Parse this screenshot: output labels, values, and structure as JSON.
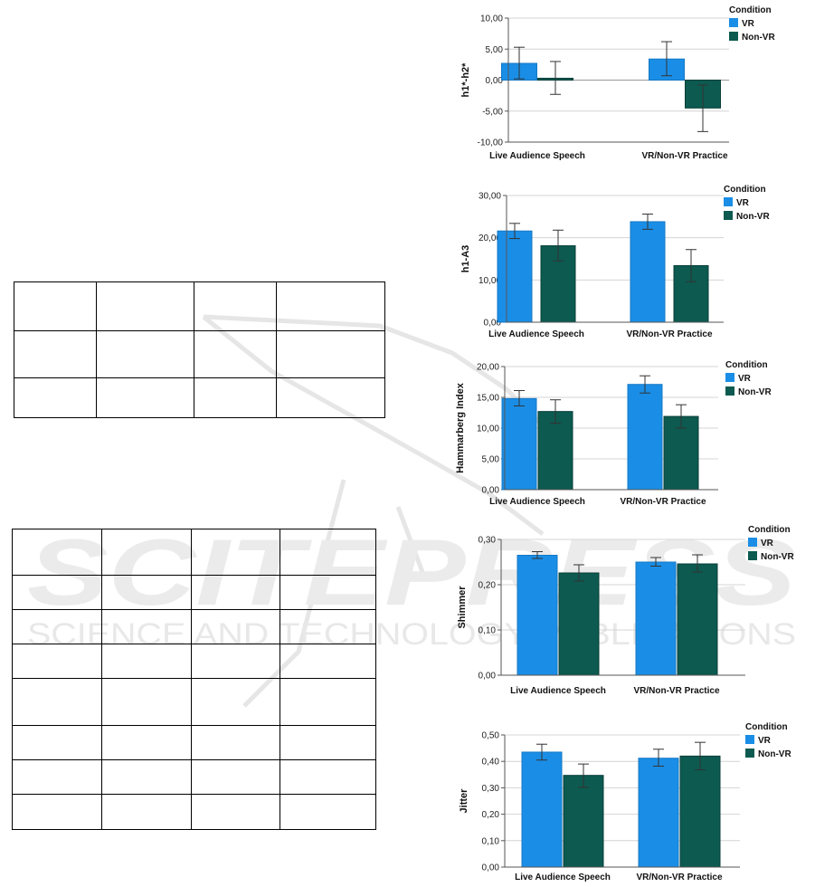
{
  "colors": {
    "vr": "#1a8ee6",
    "non_vr": "#0c5a50",
    "grid": "#d4d4d4",
    "axis": "#555555",
    "watermark": "#e3e3e3"
  },
  "watermark": {
    "main": "SCITEPRESS",
    "sub": "SCIENCE AND TECHNOLOGY PUBLICATIONS"
  },
  "tables": [
    {
      "rows": 3,
      "cols": 4
    },
    {
      "rows": 8,
      "cols": 4
    }
  ],
  "chart_data": [
    {
      "type": "bar",
      "ylabel": "h1*-h2*",
      "categories": [
        "Live Audience Speech",
        "VR/Non-VR Practice"
      ],
      "ylim": [
        -10,
        10
      ],
      "yticks": [
        "-10,00",
        "-5,00",
        "0,00",
        "5,00",
        "10,00"
      ],
      "series": [
        {
          "name": "VR",
          "values": [
            2.7,
            3.4
          ],
          "err_low": [
            0.2,
            0.7
          ],
          "err_high": [
            5.3,
            6.2
          ]
        },
        {
          "name": "Non-VR",
          "values": [
            0.3,
            -4.5
          ],
          "err_low": [
            -2.3,
            -8.3
          ],
          "err_high": [
            3.0,
            -0.8
          ]
        }
      ],
      "legend_title": "Condition",
      "legend_position": "top-right",
      "grid": true
    },
    {
      "type": "bar",
      "ylabel": "h1-A3",
      "categories": [
        "Live Audience Speech",
        "VR/Non-VR Practice"
      ],
      "ylim": [
        0,
        30
      ],
      "yticks": [
        "0,00",
        "10,00",
        "20,00",
        "30,00"
      ],
      "series": [
        {
          "name": "VR",
          "values": [
            21.6,
            23.8
          ],
          "err_low": [
            19.8,
            22.0
          ],
          "err_high": [
            23.4,
            25.6
          ]
        },
        {
          "name": "Non-VR",
          "values": [
            18.1,
            13.4
          ],
          "err_low": [
            14.5,
            9.6
          ],
          "err_high": [
            21.8,
            17.2
          ]
        }
      ],
      "legend_title": "Condition",
      "legend_position": "top-right",
      "grid": true
    },
    {
      "type": "bar",
      "ylabel": "Hammarberg Index",
      "categories": [
        "Live Audience Speech",
        "VR/Non-VR Practice"
      ],
      "ylim": [
        0,
        20
      ],
      "yticks": [
        "0,00",
        "5,00",
        "10,00",
        "15,00",
        "20,00"
      ],
      "series": [
        {
          "name": "VR",
          "values": [
            14.8,
            17.1
          ],
          "err_low": [
            13.6,
            15.7
          ],
          "err_high": [
            16.1,
            18.5
          ]
        },
        {
          "name": "Non-VR",
          "values": [
            12.7,
            11.9
          ],
          "err_low": [
            10.8,
            10.0
          ],
          "err_high": [
            14.6,
            13.8
          ]
        }
      ],
      "legend_title": "Condition",
      "legend_position": "top-right",
      "grid": true
    },
    {
      "type": "bar",
      "ylabel": "Shimmer",
      "categories": [
        "Live Audience Speech",
        "VR/Non-VR Practice"
      ],
      "ylim": [
        0,
        0.3
      ],
      "yticks": [
        "0,00",
        "0,10",
        "0,20",
        "0,30"
      ],
      "series": [
        {
          "name": "VR",
          "values": [
            0.265,
            0.25
          ],
          "err_low": [
            0.258,
            0.241
          ],
          "err_high": [
            0.273,
            0.26
          ]
        },
        {
          "name": "Non-VR",
          "values": [
            0.226,
            0.246
          ],
          "err_low": [
            0.208,
            0.228
          ],
          "err_high": [
            0.244,
            0.266
          ]
        }
      ],
      "legend_title": "Condition",
      "legend_position": "top-right",
      "grid": true
    },
    {
      "type": "bar",
      "ylabel": "Jitter",
      "categories": [
        "Live Audience Speech",
        "VR/Non-VR Practice"
      ],
      "ylim": [
        0,
        0.5
      ],
      "yticks": [
        "0,00",
        "0,10",
        "0,20",
        "0,30",
        "0,40",
        "0,50"
      ],
      "series": [
        {
          "name": "VR",
          "values": [
            0.435,
            0.412
          ],
          "err_low": [
            0.405,
            0.382
          ],
          "err_high": [
            0.465,
            0.446
          ]
        },
        {
          "name": "Non-VR",
          "values": [
            0.347,
            0.42
          ],
          "err_low": [
            0.302,
            0.368
          ],
          "err_high": [
            0.39,
            0.472
          ]
        }
      ],
      "legend_title": "Condition",
      "legend_position": "top-right",
      "grid": true
    }
  ]
}
